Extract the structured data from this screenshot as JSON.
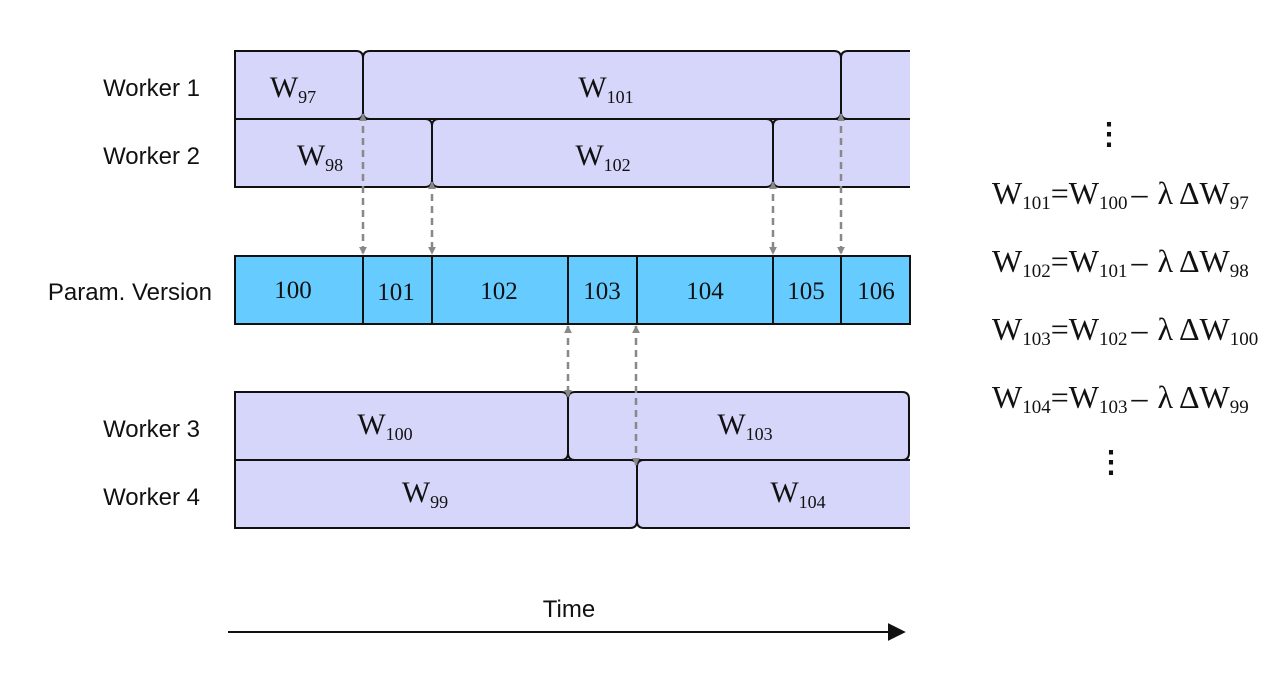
{
  "workers": [
    {
      "label": "Worker 1",
      "segments": [
        {
          "base": "W",
          "sub": "97"
        },
        {
          "base": "W",
          "sub": "101"
        },
        {
          "base": "",
          "sub": ""
        }
      ]
    },
    {
      "label": "Worker 2",
      "segments": [
        {
          "base": "W",
          "sub": "98"
        },
        {
          "base": "W",
          "sub": "102"
        },
        {
          "base": "",
          "sub": ""
        }
      ]
    },
    {
      "label": "Worker 3",
      "segments": [
        {
          "base": "W",
          "sub": "100"
        },
        {
          "base": "W",
          "sub": "103"
        }
      ]
    },
    {
      "label": "Worker 4",
      "segments": [
        {
          "base": "W",
          "sub": "99"
        },
        {
          "base": "W",
          "sub": "104"
        }
      ]
    }
  ],
  "param_version": {
    "label": "Param. Version",
    "versions": [
      "100",
      "101",
      "102",
      "103",
      "104",
      "105",
      "106"
    ]
  },
  "time_label": "Time",
  "equations": [
    {
      "lhs_sub": "101",
      "rhs_sub": "100",
      "dw_sub": "97"
    },
    {
      "lhs_sub": "102",
      "rhs_sub": "101",
      "dw_sub": "98"
    },
    {
      "lhs_sub": "103",
      "rhs_sub": "102",
      "dw_sub": "100"
    },
    {
      "lhs_sub": "104",
      "rhs_sub": "103",
      "dw_sub": "99"
    }
  ],
  "equation_tokens": {
    "w": "W",
    "eq": "=",
    "minus": "–",
    "lambda": "λ",
    "delta_w": "ΔW"
  },
  "ellipsis": "⋮",
  "colors": {
    "worker_fill": "#d6d6fa",
    "param_fill": "#66ccff",
    "arrow": "#888888",
    "outline": "#111111"
  }
}
